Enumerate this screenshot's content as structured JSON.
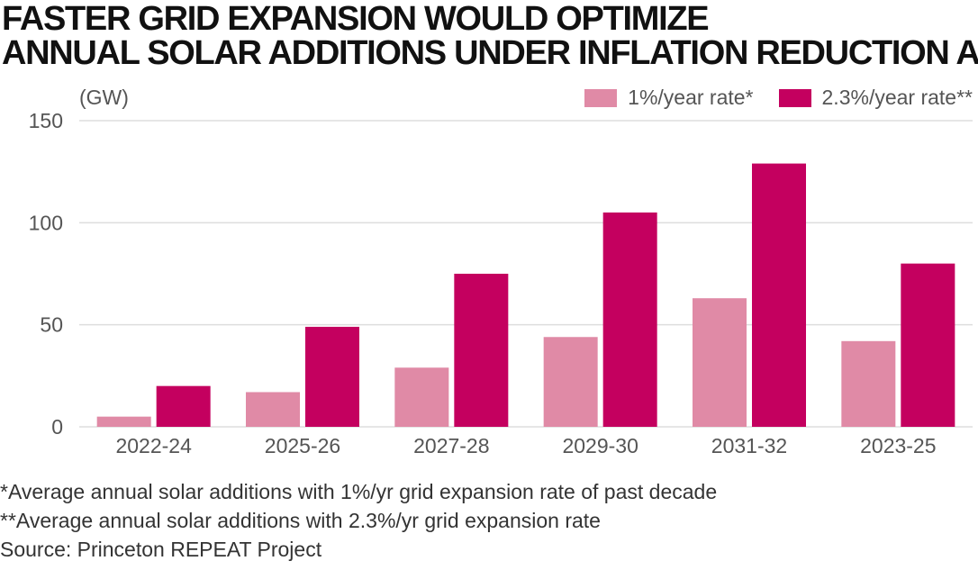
{
  "header": {
    "title_line1": "FASTER GRID EXPANSION WOULD OPTIMIZE",
    "title_line2": "ANNUAL SOLAR ADDITIONS UNDER INFLATION REDUCTION ACT"
  },
  "chart_data": {
    "type": "bar",
    "title": "FASTER GRID EXPANSION WOULD OPTIMIZE ANNUAL SOLAR ADDITIONS UNDER INFLATION REDUCTION ACT",
    "ylabel": "(GW)",
    "xlabel": "",
    "ylim": [
      0,
      150
    ],
    "yticks": [
      0,
      50,
      100,
      150
    ],
    "grid": true,
    "legend_position": "top-right",
    "categories": [
      "2022-24",
      "2025-26",
      "2027-28",
      "2029-30",
      "2031-32",
      "2023-25"
    ],
    "series": [
      {
        "name": "1%/year rate*",
        "color": "#e08aa6",
        "values": [
          5,
          17,
          29,
          44,
          63,
          42
        ]
      },
      {
        "name": "2.3%/year rate**",
        "color": "#c4005f",
        "values": [
          20,
          49,
          75,
          105,
          129,
          80
        ]
      }
    ]
  },
  "footnotes": {
    "note1": "*Average annual solar additions with 1%/yr grid expansion rate of past decade",
    "note2": "**Average annual solar additions with 2.3%/yr grid expansion rate",
    "source": "Source: Princeton REPEAT Project"
  },
  "colors": {
    "grid": "#dddddd",
    "axis_text": "#555555",
    "series1": "#e08aa6",
    "series2": "#c4005f"
  }
}
